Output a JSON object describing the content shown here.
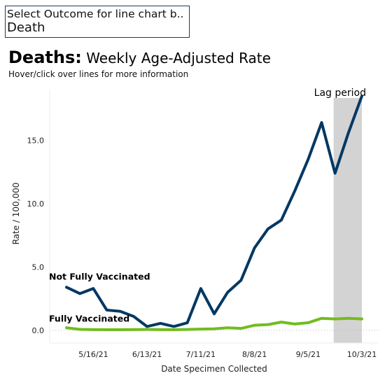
{
  "selector": {
    "label": "Select Outcome for line chart b..",
    "value": "Death"
  },
  "header": {
    "title_bold": "Deaths:",
    "title_rest": " Weekly Age-Adjusted Rate",
    "subtitle": "Hover/click over lines for more information"
  },
  "chart_data": {
    "type": "line",
    "xlabel": "Date Specimen Collected",
    "ylabel": "Rate / 100,000",
    "ylim": [
      -1.0,
      19.0
    ],
    "y_ticks": [
      0.0,
      5.0,
      10.0,
      15.0
    ],
    "y_tick_labels": [
      "0.0",
      "5.0",
      "10.0",
      "15.0"
    ],
    "x": [
      "5/2/21",
      "5/9/21",
      "5/16/21",
      "5/23/21",
      "5/30/21",
      "6/6/21",
      "6/13/21",
      "6/20/21",
      "6/27/21",
      "7/4/21",
      "7/11/21",
      "7/18/21",
      "7/25/21",
      "8/1/21",
      "8/8/21",
      "8/15/21",
      "8/22/21",
      "8/29/21",
      "9/5/21",
      "9/12/21",
      "9/19/21",
      "9/26/21",
      "10/3/21"
    ],
    "x_tick_labels": [
      "5/16/21",
      "6/13/21",
      "7/11/21",
      "8/8/21",
      "9/5/21",
      "10/3/21"
    ],
    "series": [
      {
        "name": "Not Fully Vaccinated",
        "color": "#003863",
        "values": [
          3.4,
          2.9,
          3.3,
          1.6,
          1.5,
          1.1,
          0.3,
          0.55,
          0.3,
          0.6,
          3.3,
          1.3,
          3.0,
          3.95,
          6.5,
          8.0,
          8.7,
          11.0,
          13.5,
          16.4,
          12.4,
          15.6,
          18.5
        ]
      },
      {
        "name": "Fully Vaccinated",
        "color": "#72bc1f",
        "values": [
          0.2,
          0.08,
          0.06,
          0.05,
          0.05,
          0.06,
          0.07,
          0.06,
          0.05,
          0.07,
          0.1,
          0.12,
          0.2,
          0.15,
          0.4,
          0.45,
          0.65,
          0.5,
          0.6,
          0.95,
          0.9,
          0.95,
          0.9
        ]
      }
    ],
    "annotations": [
      {
        "type": "shaded-region",
        "label": "Lag period",
        "x_start": "9/19/21",
        "x_end": "10/3/21"
      }
    ],
    "grid": false,
    "zero_line": true
  }
}
